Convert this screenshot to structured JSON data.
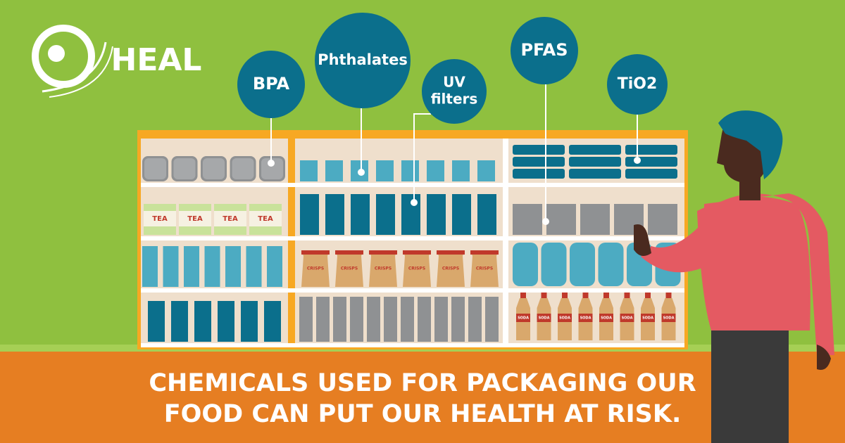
{
  "logo": {
    "text": "HEAL"
  },
  "chemicals": [
    {
      "label": "BPA"
    },
    {
      "label": "Phthalates"
    },
    {
      "label": "UV filters",
      "lines": [
        "UV",
        "filters"
      ]
    },
    {
      "label": "PFAS"
    },
    {
      "label": "TiO2"
    }
  ],
  "products": {
    "tea": [
      "TEA",
      "TEA",
      "TEA",
      "TEA"
    ],
    "crisps": [
      "CRISPS",
      "CRISPS",
      "CRISPS",
      "CRISPS",
      "CRISPS",
      "CRISPS"
    ],
    "soda": [
      "SODA",
      "SODA",
      "SODA",
      "SODA",
      "SODA",
      "SODA",
      "SODA",
      "SODA"
    ]
  },
  "headline": {
    "lines": [
      "CHEMICALS USED FOR PACKAGING OUR",
      "FOOD CAN PUT OUR HEALTH AT RISK."
    ]
  }
}
